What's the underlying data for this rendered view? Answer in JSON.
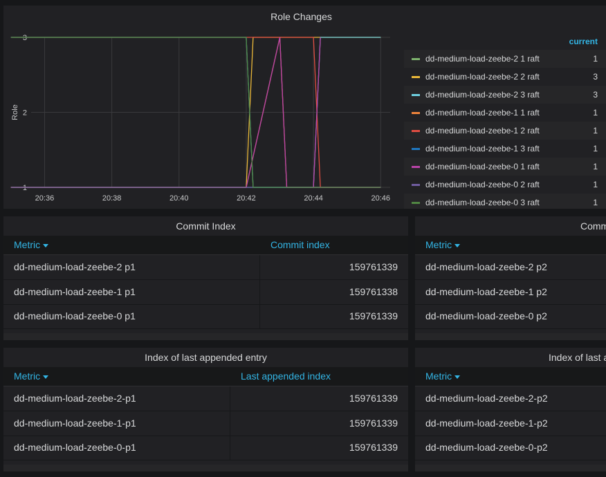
{
  "role_changes": {
    "title": "Role Changes",
    "legend_header": "current",
    "legend": [
      {
        "name": "dd-medium-load-zeebe-2 1 raft",
        "current": "1",
        "color": "#7eb26d"
      },
      {
        "name": "dd-medium-load-zeebe-2 2 raft",
        "current": "3",
        "color": "#eab839"
      },
      {
        "name": "dd-medium-load-zeebe-2 3 raft",
        "current": "3",
        "color": "#6ed0e0"
      },
      {
        "name": "dd-medium-load-zeebe-1 1 raft",
        "current": "1",
        "color": "#ef843c"
      },
      {
        "name": "dd-medium-load-zeebe-1 2 raft",
        "current": "1",
        "color": "#e24d42"
      },
      {
        "name": "dd-medium-load-zeebe-1 3 raft",
        "current": "1",
        "color": "#1f78c1"
      },
      {
        "name": "dd-medium-load-zeebe-0 1 raft",
        "current": "1",
        "color": "#ba43a9"
      },
      {
        "name": "dd-medium-load-zeebe-0 2 raft",
        "current": "1",
        "color": "#705da0"
      },
      {
        "name": "dd-medium-load-zeebe-0 3 raft",
        "current": "1",
        "color": "#508642"
      }
    ]
  },
  "chart_data": {
    "type": "line",
    "title": "Role Changes",
    "xlabel": "",
    "ylabel": "Role",
    "x_ticks": [
      "20:36",
      "20:38",
      "20:40",
      "20:42",
      "20:44",
      "20:46"
    ],
    "y_ticks": [
      "1",
      "2",
      "3"
    ],
    "ylim": [
      1,
      3
    ],
    "grid": true,
    "legend_position": "right",
    "series": [
      {
        "name": "dd-medium-load-zeebe-2 1 raft",
        "color": "#7eb26d",
        "points": [
          [
            "20:35",
            3
          ],
          [
            "20:42",
            3
          ],
          [
            "20:42",
            1
          ],
          [
            "20:46",
            1
          ]
        ]
      },
      {
        "name": "dd-medium-load-zeebe-2 2 raft",
        "color": "#eab839",
        "points": [
          [
            "20:35",
            1
          ],
          [
            "20:42",
            1
          ],
          [
            "20:42",
            3
          ],
          [
            "20:46",
            3
          ]
        ]
      },
      {
        "name": "dd-medium-load-zeebe-2 3 raft",
        "color": "#6ed0e0",
        "points": [
          [
            "20:35",
            1
          ],
          [
            "20:44",
            1
          ],
          [
            "20:44",
            3
          ],
          [
            "20:46",
            3
          ]
        ]
      },
      {
        "name": "dd-medium-load-zeebe-1 1 raft",
        "color": "#ef843c",
        "points": [
          [
            "20:35",
            1
          ],
          [
            "20:42",
            1
          ],
          [
            "20:43",
            3
          ],
          [
            "20:43",
            1
          ],
          [
            "20:46",
            1
          ]
        ]
      },
      {
        "name": "dd-medium-load-zeebe-1 2 raft",
        "color": "#e24d42",
        "points": [
          [
            "20:35",
            3
          ],
          [
            "20:44",
            3
          ],
          [
            "20:44",
            1
          ],
          [
            "20:46",
            1
          ]
        ]
      },
      {
        "name": "dd-medium-load-zeebe-1 3 raft",
        "color": "#1f78c1",
        "points": [
          [
            "20:35",
            3
          ],
          [
            "20:42",
            3
          ],
          [
            "20:42",
            1
          ],
          [
            "20:46",
            1
          ]
        ]
      },
      {
        "name": "dd-medium-load-zeebe-0 1 raft",
        "color": "#ba43a9",
        "points": [
          [
            "20:35",
            1
          ],
          [
            "20:42",
            1
          ],
          [
            "20:43",
            3
          ],
          [
            "20:43",
            1
          ],
          [
            "20:44",
            1
          ],
          [
            "20:44",
            3
          ],
          [
            "20:44",
            1
          ],
          [
            "20:46",
            1
          ]
        ]
      },
      {
        "name": "dd-medium-load-zeebe-0 2 raft",
        "color": "#705da0",
        "points": [
          [
            "20:35",
            1
          ],
          [
            "20:46",
            1
          ]
        ]
      },
      {
        "name": "dd-medium-load-zeebe-0 3 raft",
        "color": "#508642",
        "points": [
          [
            "20:35",
            3
          ],
          [
            "20:42",
            3
          ],
          [
            "20:42",
            1
          ],
          [
            "20:46",
            1
          ]
        ]
      }
    ]
  },
  "commit_index": {
    "title": "Commit Index",
    "metric_header": "Metric",
    "value_header": "Commit index",
    "rows": [
      {
        "metric": "dd-medium-load-zeebe-2 p1",
        "value": "159761339"
      },
      {
        "metric": "dd-medium-load-zeebe-1 p1",
        "value": "159761338"
      },
      {
        "metric": "dd-medium-load-zeebe-0 p1",
        "value": "159761339"
      }
    ]
  },
  "commit_index_p2": {
    "title": "Comm",
    "metric_header": "Metric",
    "rows": [
      {
        "metric": "dd-medium-load-zeebe-2 p2"
      },
      {
        "metric": "dd-medium-load-zeebe-1 p2"
      },
      {
        "metric": "dd-medium-load-zeebe-0 p2"
      }
    ]
  },
  "last_appended": {
    "title": "Index of last appended entry",
    "metric_header": "Metric",
    "value_header": "Last appended index",
    "rows": [
      {
        "metric": "dd-medium-load-zeebe-2-p1",
        "value": "159761339"
      },
      {
        "metric": "dd-medium-load-zeebe-1-p1",
        "value": "159761339"
      },
      {
        "metric": "dd-medium-load-zeebe-0-p1",
        "value": "159761339"
      }
    ]
  },
  "last_appended_p2": {
    "title": "Index of last a",
    "metric_header": "Metric",
    "rows": [
      {
        "metric": "dd-medium-load-zeebe-2-p2"
      },
      {
        "metric": "dd-medium-load-zeebe-1-p2"
      },
      {
        "metric": "dd-medium-load-zeebe-0-p2"
      }
    ]
  }
}
